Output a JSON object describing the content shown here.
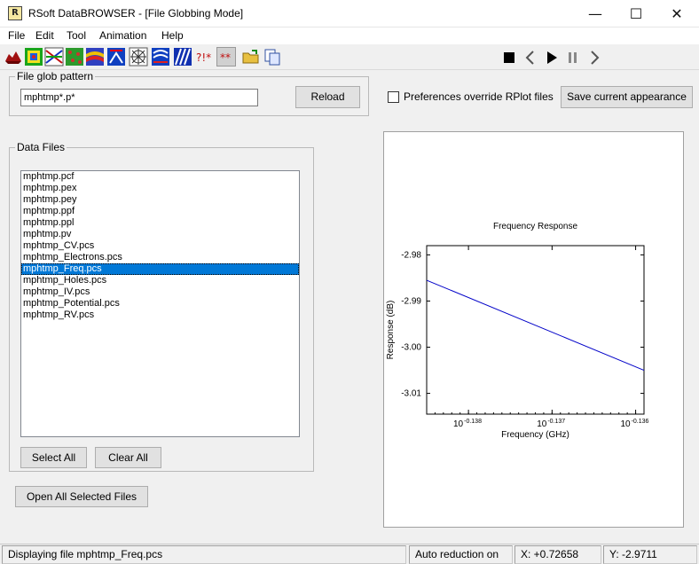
{
  "window": {
    "title": "RSoft DataBROWSER - [File Globbing Mode]",
    "app_icon_glyph": "R",
    "minimize_glyph": "—",
    "maximize_glyph": "☐",
    "close_glyph": "✕"
  },
  "menubar": {
    "items": [
      {
        "label": "File"
      },
      {
        "label": "Edit"
      },
      {
        "label": "Tool"
      },
      {
        "label": "Animation"
      },
      {
        "label": "Help"
      }
    ]
  },
  "toolbar": {
    "icons": [
      "plot-type-icon",
      "contour-icon",
      "cross-section-icon",
      "grid-map-icon",
      "surface-icon",
      "axis-icon",
      "polar-icon",
      "field-icon",
      "vector-icon",
      "query-icon",
      "marker-icon",
      "open-folder-icon",
      "copy-icon"
    ],
    "animation_icons": [
      "stop-icon",
      "prev-icon",
      "play-icon",
      "pause-icon",
      "next-icon"
    ],
    "query_label": "?!*",
    "marker_label": "**"
  },
  "glob": {
    "group_label": "File glob pattern",
    "value": "mphtmp*.p*",
    "reload_label": "Reload"
  },
  "preferences": {
    "checkbox_label": "Preferences override RPlot files",
    "checked": false,
    "save_label": "Save current appearance"
  },
  "data_files": {
    "group_label": "Data Files",
    "files": [
      "mphtmp.pcf",
      "mphtmp.pex",
      "mphtmp.pey",
      "mphtmp.ppf",
      "mphtmp.ppl",
      "mphtmp.pv",
      "mphtmp_CV.pcs",
      "mphtmp_Electrons.pcs",
      "mphtmp_Freq.pcs",
      "mphtmp_Holes.pcs",
      "mphtmp_IV.pcs",
      "mphtmp_Potential.pcs",
      "mphtmp_RV.pcs"
    ],
    "selected_index": 8,
    "select_all_label": "Select All",
    "clear_all_label": "Clear All",
    "open_all_label": "Open All Selected Files"
  },
  "chart_data": {
    "type": "line",
    "title": "Frequency Response",
    "xlabel": "Frequency (GHz)",
    "ylabel": "Response (dB)",
    "x_scale": "log",
    "x_ticks": [
      {
        "base": "10",
        "exp": "-0.138",
        "value": -0.138
      },
      {
        "base": "10",
        "exp": "-0.137",
        "value": -0.137
      },
      {
        "base": "10",
        "exp": "-0.136",
        "value": -0.136
      }
    ],
    "y_ticks": [
      "-2.98",
      "-2.99",
      "-3.00",
      "-3.01"
    ],
    "xlim_log10": [
      -0.1385,
      -0.1359
    ],
    "ylim": [
      -3.0145,
      -2.978
    ],
    "series": [
      {
        "color": "#0000c8",
        "x_log10": [
          -0.1385,
          -0.1359
        ],
        "y": [
          -2.9855,
          -3.005
        ]
      }
    ],
    "grid": false
  },
  "status": {
    "message": "Displaying file mphtmp_Freq.pcs",
    "reduction": "Auto reduction on",
    "x_readout": "X: +0.72658",
    "y_readout": "Y: -2.9711"
  }
}
